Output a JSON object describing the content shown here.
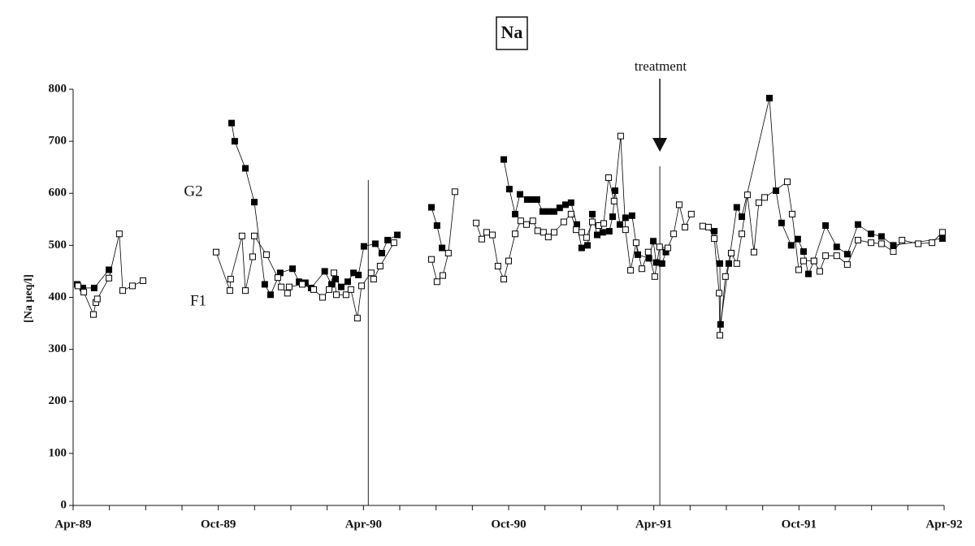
{
  "chart_data": {
    "type": "line",
    "title": "Na",
    "ylabel": "[Na µeq/l]",
    "xlim": [
      0,
      36
    ],
    "ylim": [
      0,
      800
    ],
    "yticks": [
      0,
      100,
      200,
      300,
      400,
      500,
      600,
      700,
      800
    ],
    "xticks": [
      {
        "value": 0,
        "label": "Apr-89"
      },
      {
        "value": 6,
        "label": "Oct-89"
      },
      {
        "value": 12,
        "label": "Apr-90"
      },
      {
        "value": 18,
        "label": "Oct-90"
      },
      {
        "value": 24,
        "label": "Apr-91"
      },
      {
        "value": 30,
        "label": "Oct-91"
      },
      {
        "value": 36,
        "label": "Apr-92"
      }
    ],
    "xminorticks": [
      1.5,
      3,
      4.5,
      7.5,
      9,
      10.5,
      13.5,
      15,
      16.5,
      19.5,
      21,
      22.5,
      25.5,
      27,
      28.5,
      31.5,
      33,
      34.5
    ],
    "vlines": [
      12.2,
      24.25
    ],
    "annotation": {
      "text": "treatment",
      "x": 24.25
    },
    "series": [
      {
        "name": "G2",
        "color": "#000000",
        "marker": "filled",
        "x": [
          0.17,
          0.4,
          0.87,
          1.48,
          null,
          6.55,
          6.68,
          7.12,
          7.49,
          7.92,
          8.16,
          8.56,
          9.07,
          9.34,
          9.6,
          9.84,
          10.4,
          10.68,
          10.85,
          11.08,
          11.35,
          11.59,
          11.79,
          12.02,
          12.49,
          12.76,
          13.0,
          13.4,
          null,
          14.81,
          15.04,
          15.25,
          null,
          17.8,
          18.03,
          18.27,
          18.47,
          18.77,
          18.97,
          19.17,
          19.41,
          19.64,
          19.88,
          20.11,
          20.35,
          20.58,
          20.82,
          21.02,
          21.26,
          21.46,
          21.66,
          21.89,
          22.16,
          22.3,
          22.4,
          22.6,
          22.83,
          23.1,
          23.34,
          23.8,
          23.98,
          24.1,
          24.34,
          24.5,
          null,
          26.5,
          26.73,
          26.76,
          27.1,
          27.43,
          27.64,
          28.78,
          29.05,
          29.28,
          29.68,
          29.95,
          30.19,
          30.39,
          30.62,
          31.1,
          31.56,
          32.0,
          32.44,
          32.98,
          33.41,
          33.9,
          35.93
        ],
        "values": [
          425,
          418,
          418,
          453,
          null,
          735,
          700,
          648,
          583,
          425,
          405,
          447,
          455,
          430,
          428,
          418,
          450,
          425,
          435,
          420,
          430,
          447,
          443,
          498,
          503,
          485,
          510,
          520,
          null,
          573,
          538,
          495,
          null,
          665,
          608,
          560,
          598,
          588,
          588,
          588,
          565,
          565,
          565,
          572,
          578,
          582,
          540,
          495,
          500,
          560,
          520,
          525,
          527,
          555,
          605,
          540,
          553,
          557,
          482,
          475,
          508,
          467,
          465,
          487,
          null,
          527,
          465,
          348,
          465,
          573,
          555,
          783,
          605,
          543,
          500,
          512,
          488,
          445,
          470,
          538,
          497,
          483,
          540,
          522,
          517,
          500,
          513
        ]
      },
      {
        "name": "F1",
        "color": "#000000",
        "marker": "open",
        "x": [
          0.2,
          0.44,
          0.84,
          0.94,
          1.0,
          1.48,
          1.91,
          2.05,
          2.45,
          2.89,
          null,
          5.91,
          6.48,
          6.51,
          6.98,
          7.12,
          7.42,
          7.49,
          7.99,
          8.46,
          8.6,
          8.86,
          8.93,
          9.47,
          9.94,
          10.31,
          10.58,
          10.78,
          10.88,
          11.28,
          11.48,
          11.75,
          11.92,
          12.32,
          12.42,
          12.69,
          13.26,
          null,
          14.81,
          15.04,
          15.28,
          15.51,
          15.78,
          null,
          16.66,
          16.89,
          17.09,
          17.33,
          17.56,
          17.8,
          18.0,
          18.27,
          18.5,
          18.74,
          19.0,
          19.2,
          19.44,
          19.64,
          19.88,
          20.28,
          20.58,
          20.79,
          21.02,
          21.22,
          21.46,
          21.73,
          21.93,
          22.13,
          22.36,
          22.63,
          22.83,
          23.04,
          23.27,
          23.51,
          23.77,
          24.04,
          24.24,
          24.58,
          24.82,
          25.05,
          25.29,
          25.55,
          null,
          26.02,
          26.26,
          26.5,
          26.7,
          26.73,
          26.96,
          27.2,
          27.43,
          27.64,
          27.87,
          28.14,
          28.34,
          28.58,
          29.52,
          29.72,
          29.99,
          30.19,
          30.62,
          30.86,
          31.1,
          31.56,
          32.0,
          32.44,
          32.98,
          33.41,
          33.9,
          34.26,
          34.93,
          35.5,
          35.93
        ],
        "values": [
          422,
          410,
          367,
          390,
          397,
          437,
          522,
          413,
          422,
          432,
          null,
          487,
          413,
          435,
          518,
          413,
          478,
          518,
          482,
          438,
          420,
          408,
          420,
          425,
          415,
          400,
          415,
          447,
          405,
          405,
          415,
          360,
          422,
          447,
          435,
          460,
          505,
          null,
          473,
          430,
          442,
          485,
          603,
          null,
          543,
          512,
          525,
          520,
          460,
          435,
          470,
          522,
          547,
          540,
          547,
          528,
          525,
          516,
          525,
          545,
          560,
          530,
          525,
          515,
          545,
          538,
          542,
          630,
          585,
          710,
          530,
          452,
          505,
          455,
          487,
          440,
          497,
          495,
          522,
          578,
          535,
          560,
          null,
          537,
          535,
          513,
          408,
          327,
          440,
          485,
          465,
          522,
          597,
          487,
          582,
          592,
          622,
          560,
          453,
          470,
          470,
          450,
          480,
          480,
          463,
          510,
          505,
          503,
          488,
          510,
          503,
          505,
          525
        ]
      }
    ]
  }
}
